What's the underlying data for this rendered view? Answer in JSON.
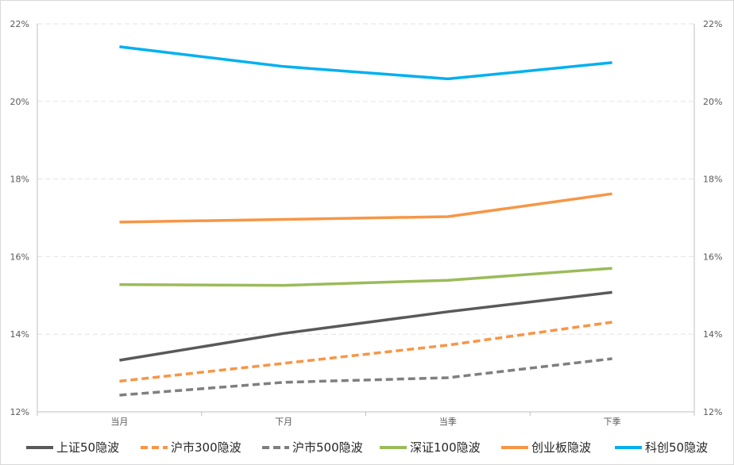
{
  "chart_data": {
    "type": "line",
    "categories": [
      "当月",
      "下月",
      "当季",
      "下季"
    ],
    "ylim": [
      0.12,
      0.22
    ],
    "y_ticks": [
      "12%",
      "14%",
      "16%",
      "18%",
      "20%",
      "22%"
    ],
    "y_tick_values": [
      0.12,
      0.14,
      0.16,
      0.18,
      0.2,
      0.22
    ],
    "dual_y_axis": true,
    "grid": "horizontal-dashed",
    "legend_position": "bottom",
    "series": [
      {
        "name": "上证50隐波",
        "values": [
          0.1333,
          0.1402,
          0.1458,
          0.1508
        ],
        "color": "#595959",
        "dash": "solid"
      },
      {
        "name": "沪市300隐波",
        "values": [
          0.1279,
          0.1325,
          0.1372,
          0.1431
        ],
        "color": "#F79646",
        "dash": "dashed"
      },
      {
        "name": "沪市500隐波",
        "values": [
          0.1243,
          0.1276,
          0.1288,
          0.1337
        ],
        "color": "#7F7F7F",
        "dash": "dashed"
      },
      {
        "name": "深证100隐波",
        "values": [
          0.1528,
          0.1526,
          0.1539,
          0.157
        ],
        "color": "#9BBB59",
        "dash": "solid"
      },
      {
        "name": "创业板隐波",
        "values": [
          0.1689,
          0.1696,
          0.1703,
          0.1762
        ],
        "color": "#F79646",
        "dash": "solid"
      },
      {
        "name": "科创50隐波",
        "values": [
          0.2141,
          0.209,
          0.2058,
          0.21
        ],
        "color": "#00B0F0",
        "dash": "solid"
      }
    ]
  }
}
